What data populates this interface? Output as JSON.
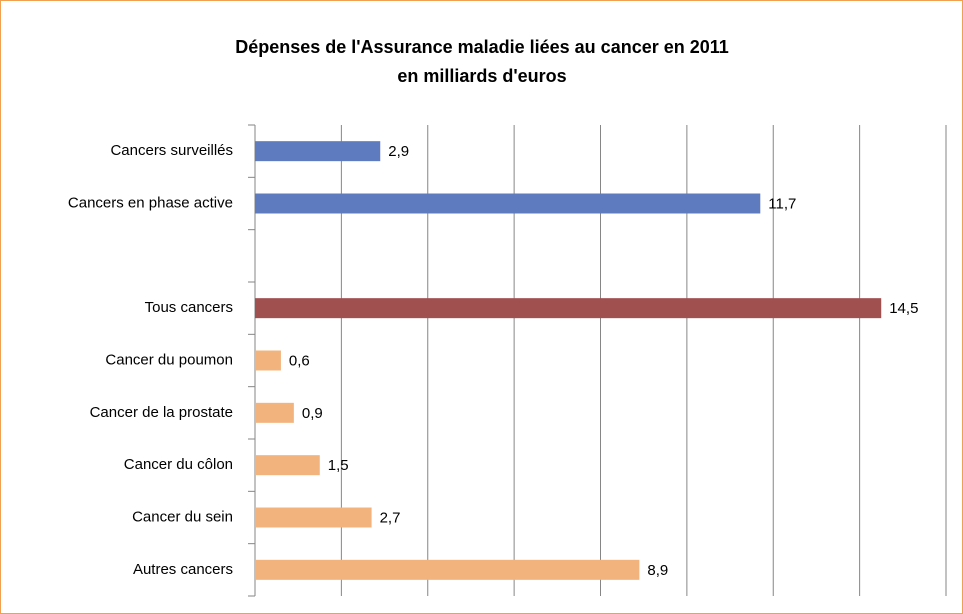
{
  "chart_data": {
    "type": "bar",
    "orientation": "horizontal",
    "title": "Dépenses de l'Assurance maladie liées au cancer en 2011",
    "subtitle": "en milliards d'euros",
    "categories": [
      "Cancers surveillés",
      "Cancers en phase active",
      null,
      "Tous cancers",
      "Cancer du poumon",
      "Cancer de la prostate",
      "Cancer du côlon",
      "Cancer du sein",
      "Autres cancers"
    ],
    "values": [
      2.9,
      11.7,
      null,
      14.5,
      0.6,
      0.9,
      1.5,
      2.7,
      8.9
    ],
    "value_labels": [
      "2,9",
      "11,7",
      null,
      "14,5",
      "0,6",
      "0,9",
      "1,5",
      "2,7",
      "8,9"
    ],
    "colors": [
      "#5f7bbf",
      "#5f7bbf",
      null,
      "#a0504f",
      "#f2b47c",
      "#f2b47c",
      "#f2b47c",
      "#f2b47c",
      "#f2b47c"
    ],
    "xlim": [
      0,
      16
    ],
    "xticks": [
      0,
      2,
      4,
      6,
      8,
      10,
      12,
      14,
      16
    ],
    "grid": true
  }
}
